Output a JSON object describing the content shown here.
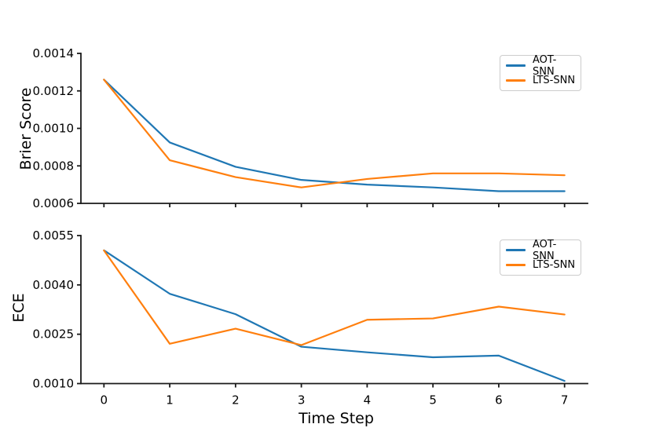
{
  "figure": {
    "background": "#ffffff",
    "accent_colors": {
      "aot_snn": "#1f77b4",
      "lts_snn": "#ff7f0e"
    }
  },
  "chart_data": [
    {
      "type": "line",
      "title": "",
      "ylabel": "Brier Score",
      "xlabel": "",
      "x": [
        0,
        1,
        2,
        3,
        4,
        5,
        6,
        7
      ],
      "series": [
        {
          "name": "AOT-SNN",
          "color": "#1f77b4",
          "values": [
            0.00126,
            0.000925,
            0.000795,
            0.000725,
            0.0007,
            0.000685,
            0.000665,
            0.000665
          ]
        },
        {
          "name": "LTS-SNN",
          "color": "#ff7f0e",
          "values": [
            0.00126,
            0.00083,
            0.00074,
            0.000685,
            0.00073,
            0.00076,
            0.00076,
            0.00075
          ]
        }
      ],
      "ylim": [
        0.0006,
        0.0014
      ],
      "yticks": [
        "0.0006",
        "0.0008",
        "0.0010",
        "0.0012",
        "0.0014"
      ],
      "xlim": [
        -0.35,
        7.35
      ],
      "xticks": [
        "0",
        "1",
        "2",
        "3",
        "4",
        "5",
        "6",
        "7"
      ],
      "show_xtick_labels": false,
      "grid": false,
      "legend_position": "upper right",
      "legend_entries": [
        "AOT-SNN",
        "LTS-SNN"
      ]
    },
    {
      "type": "line",
      "title": "",
      "ylabel": "ECE",
      "xlabel": "Time Step",
      "x": [
        0,
        1,
        2,
        3,
        4,
        5,
        6,
        7
      ],
      "series": [
        {
          "name": "AOT-SNN",
          "color": "#1f77b4",
          "values": [
            0.00505,
            0.00373,
            0.00311,
            0.00212,
            0.00195,
            0.0018,
            0.00185,
            0.00108
          ]
        },
        {
          "name": "LTS-SNN",
          "color": "#ff7f0e",
          "values": [
            0.00505,
            0.00221,
            0.00267,
            0.00217,
            0.00294,
            0.00298,
            0.00334,
            0.0031
          ]
        }
      ],
      "ylim": [
        0.001,
        0.0055
      ],
      "yticks": [
        "0.0010",
        "0.0025",
        "0.0040",
        "0.0055"
      ],
      "xlim": [
        -0.35,
        7.35
      ],
      "xticks": [
        "0",
        "1",
        "2",
        "3",
        "4",
        "5",
        "6",
        "7"
      ],
      "show_xtick_labels": true,
      "grid": false,
      "legend_position": "upper right",
      "legend_entries": [
        "AOT-SNN",
        "LTS-SNN"
      ]
    }
  ]
}
